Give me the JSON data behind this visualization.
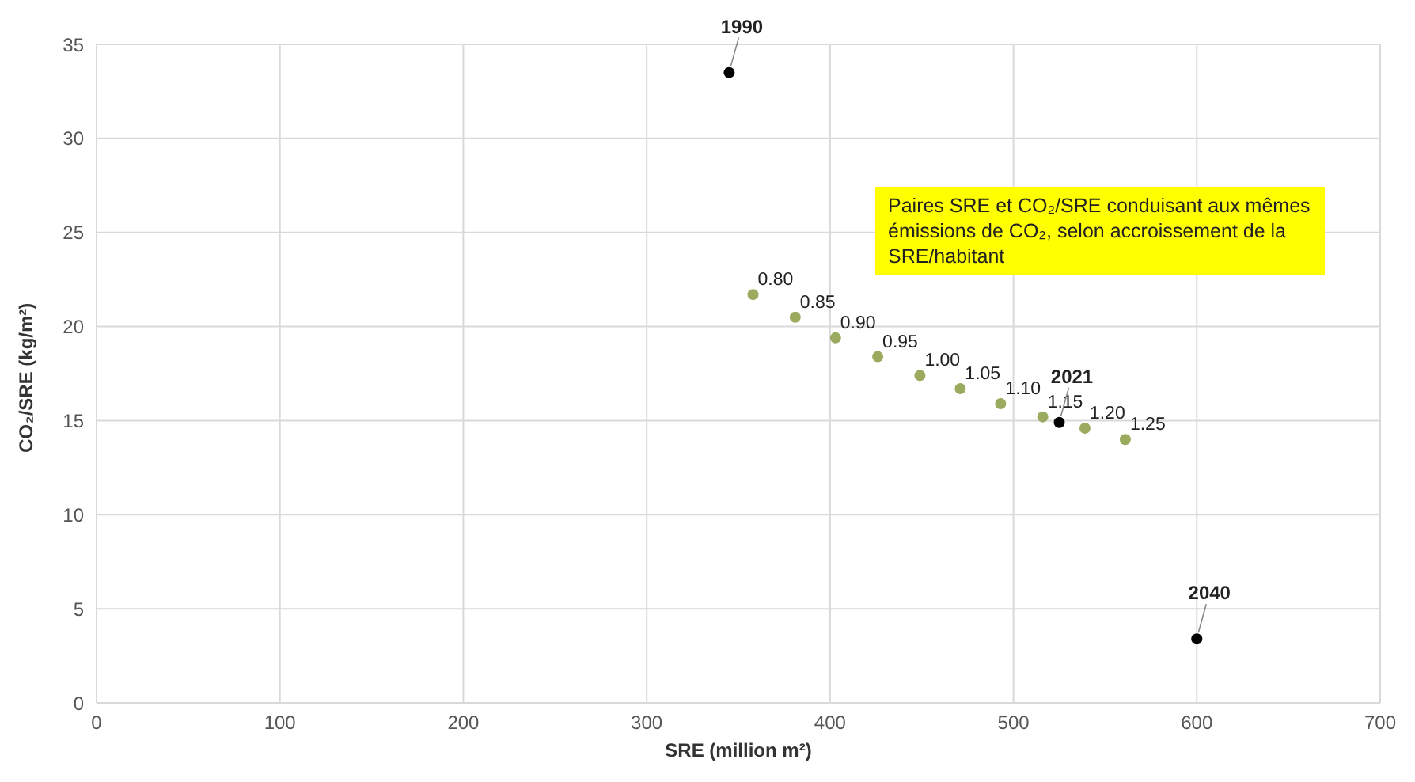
{
  "chart_data": {
    "type": "scatter",
    "xlabel": "SRE (million m²)",
    "ylabel": "CO₂/SRE (kg/m²)",
    "annotations": [
      "Paires SRE et CO₂/SRE conduisant aux mêmes émissions de CO₂, selon accroissement de la SRE/habitant",
      {
        "text": "0.80",
        "x": 358,
        "y": 21.7
      },
      {
        "text": "0.85",
        "x": 381,
        "y": 20.5
      },
      {
        "text": "0.90",
        "x": 403,
        "y": 19.4
      },
      {
        "text": "0.95",
        "x": 426,
        "y": 18.4
      },
      {
        "text": "1.00",
        "x": 449,
        "y": 17.4
      },
      {
        "text": "1.05",
        "x": 471,
        "y": 16.7
      },
      {
        "text": "1.10",
        "x": 493,
        "y": 15.9
      },
      {
        "text": "1.15",
        "x": 516,
        "y": 15.2
      },
      {
        "text": "1.20",
        "x": 539,
        "y": 14.6
      },
      {
        "text": "1.25",
        "x": 561,
        "y": 14.0
      },
      {
        "text": "1990",
        "x": 345,
        "y": 33.5
      },
      {
        "text": "2021",
        "x": 525,
        "y": 14.9
      },
      {
        "text": "2040",
        "x": 600,
        "y": 3.4
      }
    ],
    "series": [
      {
        "color": "#9aaa5e",
        "x": [
          358,
          381,
          403,
          426,
          449,
          471,
          493,
          516,
          539,
          561
        ],
        "values": [
          21.7,
          20.5,
          19.4,
          18.4,
          17.4,
          16.7,
          15.9,
          15.2,
          14.6,
          14.0
        ]
      },
      {
        "color": "#000000",
        "x": [
          345,
          525,
          600
        ],
        "values": [
          33.5,
          14.9,
          3.4
        ]
      }
    ],
    "xlim": [
      0,
      700
    ],
    "xticks": [
      0,
      100,
      200,
      300,
      400,
      500,
      600,
      700
    ],
    "ylim": [
      0,
      35
    ],
    "yticks": [
      0,
      5,
      10,
      15,
      20,
      25,
      30,
      35
    ],
    "grid": true,
    "marker": "circle",
    "legend": false
  }
}
